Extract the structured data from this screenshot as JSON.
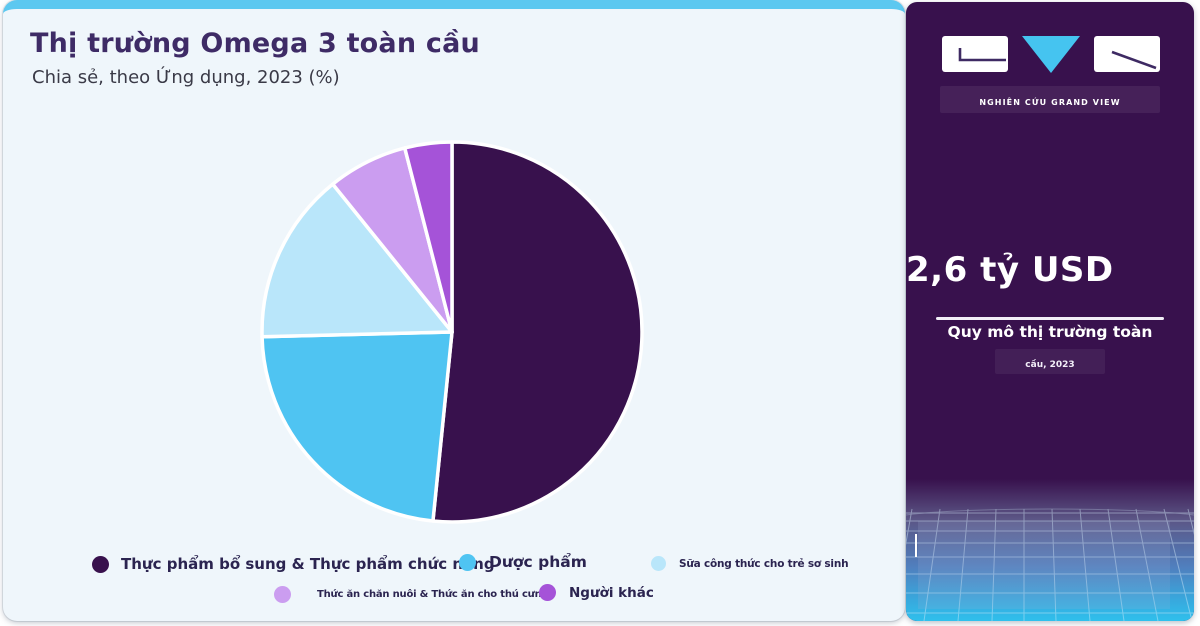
{
  "card": {
    "title": "Thị trường Omega 3 toàn cầu",
    "subtitle": "Chia sẻ, theo Ứng dụng, 2023 (%)"
  },
  "chart_data": {
    "type": "pie",
    "title": "Thị trường Omega 3 toàn cầu",
    "subtitle": "Chia sẻ, theo Ứng dụng, 2023 (%)",
    "year": "2023",
    "unit": "%",
    "categories": [
      "Thực phẩm bổ sung & Thực phẩm chức năng",
      "Dược phẩm",
      "Sữa công thức cho trẻ sơ sinh",
      "Thức ăn chăn nuôi & Thức ăn cho thú cưng",
      "Người khác"
    ],
    "values": [
      51.6,
      23.0,
      14.6,
      6.8,
      4.0
    ],
    "colors": [
      "#38114d",
      "#4fc4f2",
      "#b9e6fa",
      "#cb9df0",
      "#a553d8"
    ],
    "start_angle_deg": 0,
    "direction": "clockwise",
    "slice_gap_color": "#ffffff",
    "legend_position": "bottom"
  },
  "sidebar": {
    "logo_caption": "NGHIÊN CỨU GRAND VIEW",
    "metric_value": "2,6 tỷ USD",
    "metric_label_line1": "Quy mô thị trường toàn",
    "metric_label_line2": "cầu, 2023",
    "background_color": "#38114d",
    "accent_color": "#45c4f0"
  },
  "colors": {
    "card_background": "#eff6fb",
    "card_top_bar": "#5cc8f0",
    "title_text": "#3e2b66",
    "subtitle_text": "#3a3a47",
    "legend_text": "#2b2450",
    "page_background": "#ffffff"
  }
}
